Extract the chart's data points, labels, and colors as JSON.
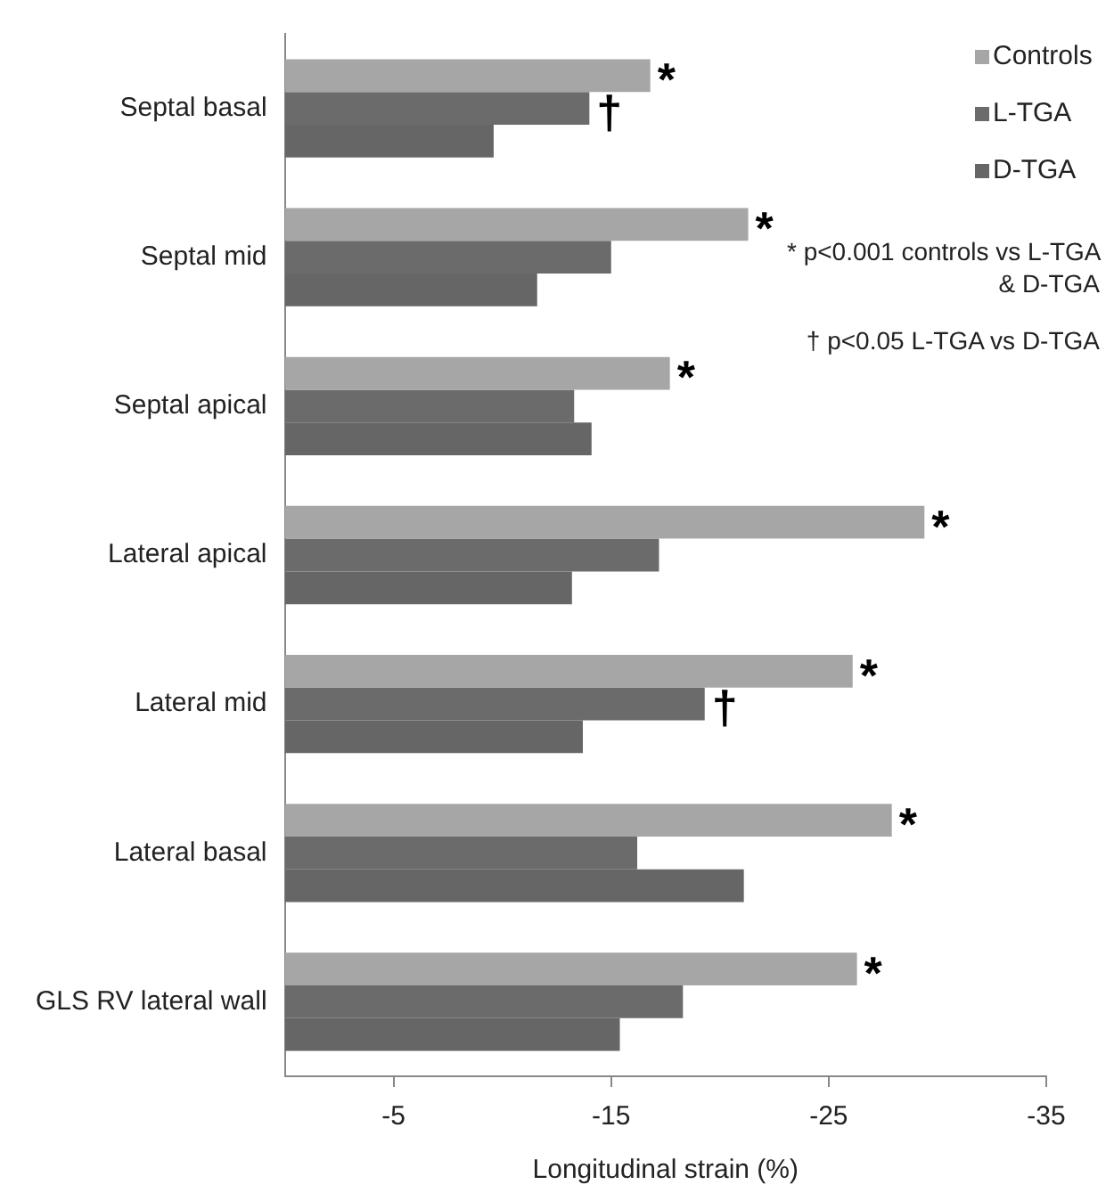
{
  "chart_data": {
    "type": "bar",
    "orientation": "horizontal",
    "xlabel": "Longitudinal strain (%)",
    "categories": [
      "Septal basal",
      "Septal mid",
      "Septal apical",
      "Lateral apical",
      "Lateral mid",
      "Lateral basal",
      "GLS RV lateral wall"
    ],
    "series": [
      {
        "name": "Controls",
        "color": "#a6a6a6",
        "values": [
          -16.8,
          -21.3,
          -17.7,
          -29.4,
          -26.1,
          -27.9,
          -26.3
        ],
        "value_labels": [
          "*",
          "*",
          "*",
          "*",
          "*",
          "*",
          "*"
        ]
      },
      {
        "name": "L-TGA",
        "color": "#6b6b6b",
        "values": [
          -14.0,
          -15.0,
          -13.3,
          -17.2,
          -19.3,
          -16.2,
          -18.3
        ],
        "value_labels": [
          "†",
          null,
          null,
          null,
          "†",
          null,
          null
        ]
      },
      {
        "name": "D-TGA",
        "color": "#666666",
        "values": [
          -9.6,
          -11.6,
          -14.1,
          -13.2,
          -13.7,
          -21.1,
          -15.4
        ]
      }
    ],
    "xlim": [
      0,
      -35
    ],
    "xticks": [
      -5,
      -15,
      -25,
      -35
    ],
    "grid": false,
    "legend": "top right",
    "annotations": [
      "* p<0.001 controls vs L-TGA & D-TGA",
      "† p<0.05 L-TGA vs D-TGA"
    ]
  }
}
